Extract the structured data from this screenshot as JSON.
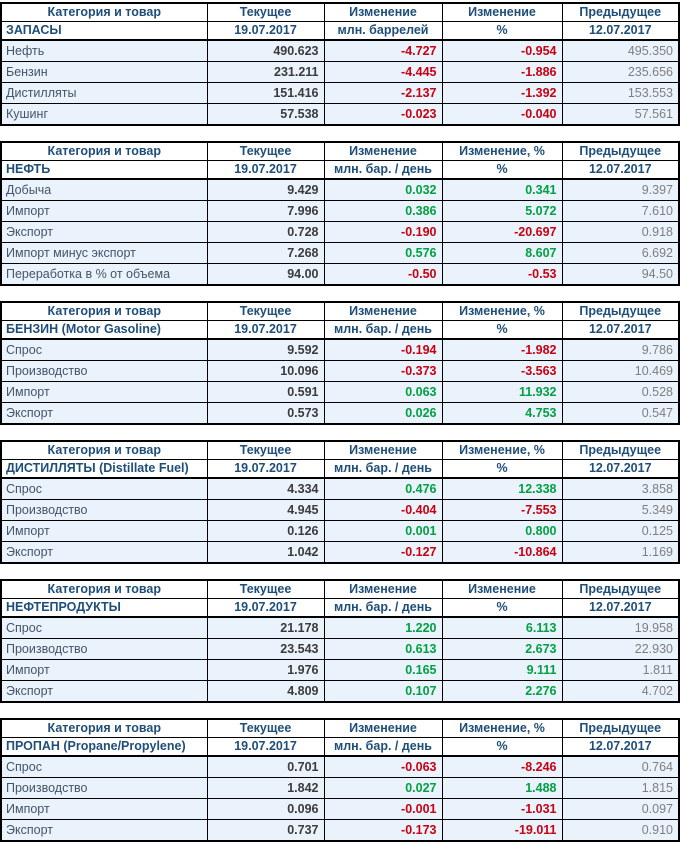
{
  "colors": {
    "header_text": "#1F4E79",
    "label_text": "#44546A",
    "current_value": "#3B3B3B",
    "previous_value": "#7F7F7F",
    "positive_change": "#00A142",
    "negative_change": "#C80011",
    "row_background": "#EAF2FB"
  },
  "dates": {
    "current": "19.07.2017",
    "previous": "12.07.2017"
  },
  "tables": [
    {
      "col_headers": [
        "Категория и товар",
        "Текущее",
        "Изменение",
        "Изменение",
        "Предыдущее"
      ],
      "sub_headers": [
        "ЗАПАСЫ",
        "19.07.2017",
        "млн. баррелей",
        "%",
        "12.07.2017"
      ],
      "rows": [
        {
          "label": "Нефть",
          "current": "490.623",
          "change": "-4.727",
          "change_pct": "-0.954",
          "previous": "495.350"
        },
        {
          "label": "Бензин",
          "current": "231.211",
          "change": "-4.445",
          "change_pct": "-1.886",
          "previous": "235.656"
        },
        {
          "label": "Дистилляты",
          "current": "151.416",
          "change": "-2.137",
          "change_pct": "-1.392",
          "previous": "153.553"
        },
        {
          "label": "Кушинг",
          "current": "57.538",
          "change": "-0.023",
          "change_pct": "-0.040",
          "previous": "57.561"
        }
      ]
    },
    {
      "col_headers": [
        "Категория и товар",
        "Текущее",
        "Изменение",
        "Изменение, %",
        "Предыдущее"
      ],
      "sub_headers": [
        "НЕФТЬ",
        "19.07.2017",
        "млн. бар. / день",
        "%",
        "12.07.2017"
      ],
      "rows": [
        {
          "label": "Добыча",
          "current": "9.429",
          "change": "0.032",
          "change_pct": "0.341",
          "previous": "9.397"
        },
        {
          "label": "Импорт",
          "current": "7.996",
          "change": "0.386",
          "change_pct": "5.072",
          "previous": "7.610"
        },
        {
          "label": "Экспорт",
          "current": "0.728",
          "change": "-0.190",
          "change_pct": "-20.697",
          "previous": "0.918"
        },
        {
          "label": "Импорт минус экспорт",
          "current": "7.268",
          "change": "0.576",
          "change_pct": "8.607",
          "previous": "6.692"
        },
        {
          "label": "Переработка в % от объема",
          "current": "94.00",
          "change": "-0.50",
          "change_pct": "-0.53",
          "previous": "94.50"
        }
      ]
    },
    {
      "col_headers": [
        "Категория и товар",
        "Текущее",
        "Изменение",
        "Изменение, %",
        "Предыдущее"
      ],
      "sub_headers": [
        "БЕНЗИН (Motor Gasoline)",
        "19.07.2017",
        "млн. бар. / день",
        "%",
        "12.07.2017"
      ],
      "rows": [
        {
          "label": "Спрос",
          "current": "9.592",
          "change": "-0.194",
          "change_pct": "-1.982",
          "previous": "9.786"
        },
        {
          "label": "Производство",
          "current": "10.096",
          "change": "-0.373",
          "change_pct": "-3.563",
          "previous": "10.469"
        },
        {
          "label": "Импорт",
          "current": "0.591",
          "change": "0.063",
          "change_pct": "11.932",
          "previous": "0.528"
        },
        {
          "label": "Экспорт",
          "current": "0.573",
          "change": "0.026",
          "change_pct": "4.753",
          "previous": "0.547"
        }
      ]
    },
    {
      "col_headers": [
        "Категория и товар",
        "Текущее",
        "Изменение",
        "Изменение, %",
        "Предыдущее"
      ],
      "sub_headers": [
        "ДИСТИЛЛЯТЫ (Distillate Fuel)",
        "19.07.2017",
        "млн. бар. / день",
        "%",
        "12.07.2017"
      ],
      "rows": [
        {
          "label": "Спрос",
          "current": "4.334",
          "change": "0.476",
          "change_pct": "12.338",
          "previous": "3.858"
        },
        {
          "label": "Производство",
          "current": "4.945",
          "change": "-0.404",
          "change_pct": "-7.553",
          "previous": "5.349"
        },
        {
          "label": "Импорт",
          "current": "0.126",
          "change": "0.001",
          "change_pct": "0.800",
          "previous": "0.125"
        },
        {
          "label": "Экспорт",
          "current": "1.042",
          "change": "-0.127",
          "change_pct": "-10.864",
          "previous": "1.169"
        }
      ]
    },
    {
      "col_headers": [
        "Категория и товар",
        "Текущее",
        "Изменение",
        "Изменение",
        "Предыдущее"
      ],
      "sub_headers": [
        "НЕФТЕПРОДУКТЫ",
        "19.07.2017",
        "млн. бар. / день",
        "%",
        "12.07.2017"
      ],
      "rows": [
        {
          "label": "Спрос",
          "current": "21.178",
          "change": "1.220",
          "change_pct": "6.113",
          "previous": "19.958"
        },
        {
          "label": "Производство",
          "current": "23.543",
          "change": "0.613",
          "change_pct": "2.673",
          "previous": "22.930"
        },
        {
          "label": "Импорт",
          "current": "1.976",
          "change": "0.165",
          "change_pct": "9.111",
          "previous": "1.811"
        },
        {
          "label": "Экспорт",
          "current": "4.809",
          "change": "0.107",
          "change_pct": "2.276",
          "previous": "4.702"
        }
      ]
    },
    {
      "col_headers": [
        "Категория и товар",
        "Текущее",
        "Изменение",
        "Изменение, %",
        "Предыдущее"
      ],
      "sub_headers": [
        "ПРОПАН (Propane/Propylene)",
        "19.07.2017",
        "млн. бар. / день",
        "%",
        "12.07.2017"
      ],
      "rows": [
        {
          "label": "Спрос",
          "current": "0.701",
          "change": "-0.063",
          "change_pct": "-8.246",
          "previous": "0.764"
        },
        {
          "label": "Производство",
          "current": "1.842",
          "change": "0.027",
          "change_pct": "1.488",
          "previous": "1.815"
        },
        {
          "label": "Импорт",
          "current": "0.096",
          "change": "-0.001",
          "change_pct": "-1.031",
          "previous": "0.097"
        },
        {
          "label": "Экспорт",
          "current": "0.737",
          "change": "-0.173",
          "change_pct": "-19.011",
          "previous": "0.910"
        }
      ]
    }
  ]
}
